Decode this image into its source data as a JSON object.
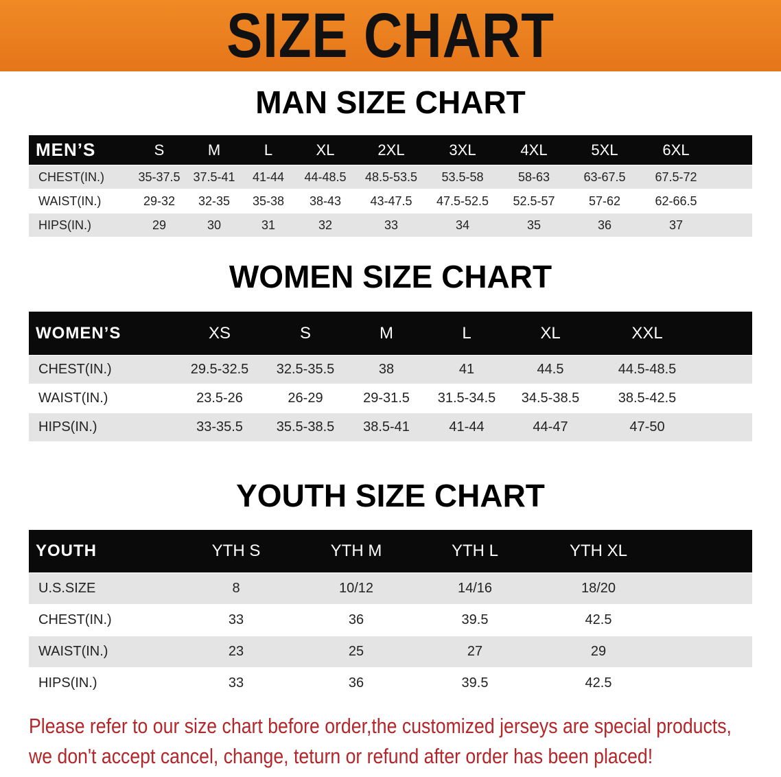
{
  "banner_title": "SIZE CHART",
  "men": {
    "title": "MAN SIZE CHART",
    "header": [
      "MEN’S",
      "S",
      "M",
      "L",
      "XL",
      "2XL",
      "3XL",
      "4XL",
      "5XL",
      "6XL"
    ],
    "rows": [
      [
        "CHEST(IN.)",
        "35-37.5",
        "37.5-41",
        "41-44",
        "44-48.5",
        "48.5-53.5",
        "53.5-58",
        "58-63",
        "63-67.5",
        "67.5-72"
      ],
      [
        "WAIST(IN.)",
        "29-32",
        "32-35",
        "35-38",
        "38-43",
        "43-47.5",
        "47.5-52.5",
        "52.5-57",
        "57-62",
        "62-66.5"
      ],
      [
        "HIPS(IN.)",
        "29",
        "30",
        "31",
        "32",
        "33",
        "34",
        "35",
        "36",
        "37"
      ]
    ]
  },
  "women": {
    "title": "WOMEN SIZE CHART",
    "header": [
      "WOMEN’S",
      "XS",
      "S",
      "M",
      "L",
      "XL",
      "XXL"
    ],
    "rows": [
      [
        "CHEST(IN.)",
        "29.5-32.5",
        "32.5-35.5",
        "38",
        "41",
        "44.5",
        "44.5-48.5"
      ],
      [
        "WAIST(IN.)",
        "23.5-26",
        "26-29",
        "29-31.5",
        "31.5-34.5",
        "34.5-38.5",
        "38.5-42.5"
      ],
      [
        "HIPS(IN.)",
        "33-35.5",
        "35.5-38.5",
        "38.5-41",
        "41-44",
        "44-47",
        "47-50"
      ]
    ]
  },
  "youth": {
    "title": "YOUTH SIZE CHART",
    "header": [
      "YOUTH",
      "YTH S",
      "YTH M",
      "YTH L",
      "YTH XL"
    ],
    "rows": [
      [
        "U.S.SIZE",
        "8",
        "10/12",
        "14/16",
        "18/20"
      ],
      [
        "CHEST(IN.)",
        "33",
        "36",
        "39.5",
        "42.5"
      ],
      [
        "WAIST(IN.)",
        "23",
        "25",
        "27",
        "29"
      ],
      [
        "HIPS(IN.)",
        "33",
        "36",
        "39.5",
        "42.5"
      ]
    ]
  },
  "footer": {
    "line1": "Please refer to our size chart before order,the customized jerseys are special products,",
    "line2": "we don't accept cancel, change, teturn or refund after order has been placed!"
  },
  "colors": {
    "banner": "#e97c1e",
    "header_row": "#0a0a0a",
    "alt_row": "#e4e4e4",
    "notice": "#b3262a"
  }
}
